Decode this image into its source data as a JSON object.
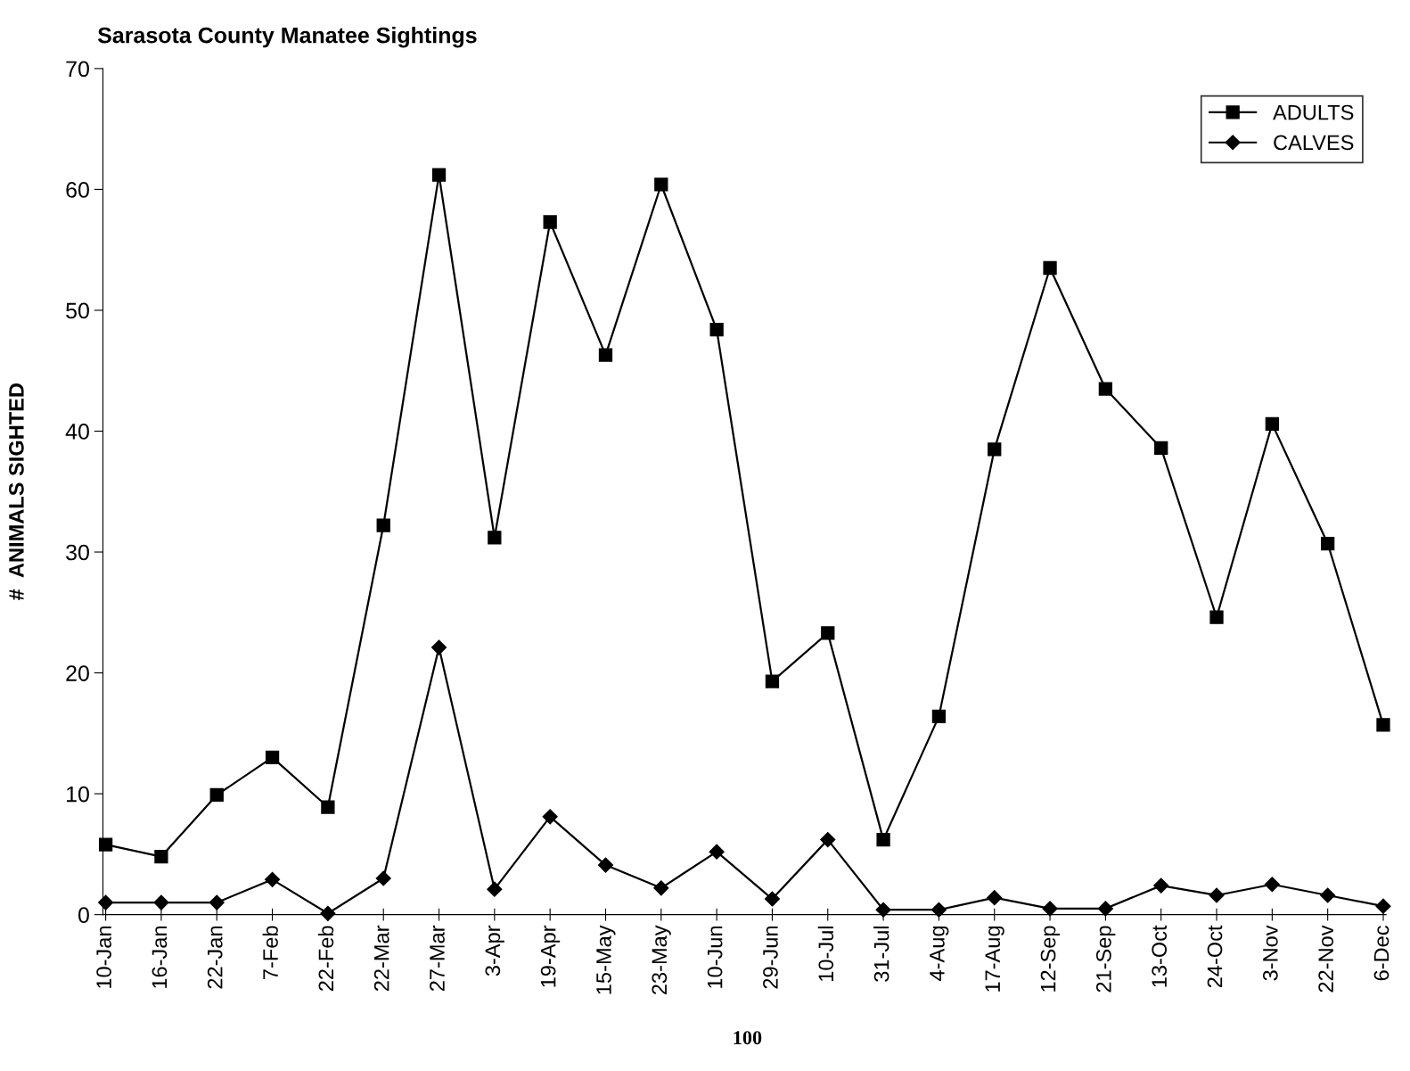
{
  "chart_data": {
    "type": "line",
    "title": "Sarasota County Manatee Sightings",
    "ylabel": "#  ANIMALS SIGHTED",
    "categories": [
      "10-Jan",
      "16-Jan",
      "22-Jan",
      "7-Feb",
      "22-Feb",
      "22-Mar",
      "27-Mar",
      "3-Apr",
      "19-Apr",
      "15-May",
      "23-May",
      "10-Jun",
      "29-Jun",
      "10-Jul",
      "31-Jul",
      "4-Aug",
      "17-Aug",
      "12-Sep",
      "21-Sep",
      "13-Oct",
      "24-Oct",
      "3-Nov",
      "22-Nov",
      "6-Dec"
    ],
    "series": [
      {
        "name": "ADULTS",
        "color": "#000000",
        "marker": "square",
        "values": [
          5.8,
          4.8,
          9.9,
          13.0,
          8.9,
          32.2,
          61.2,
          31.2,
          57.3,
          46.3,
          60.4,
          48.4,
          19.3,
          23.3,
          6.2,
          16.4,
          38.5,
          53.5,
          43.5,
          38.6,
          24.6,
          40.6,
          30.7,
          15.7
        ]
      },
      {
        "name": "CALVES",
        "color": "#000000",
        "marker": "diamond",
        "values": [
          1.0,
          1.0,
          1.0,
          2.9,
          0.1,
          3.0,
          22.1,
          2.1,
          8.1,
          4.1,
          2.2,
          5.2,
          1.3,
          6.2,
          0.4,
          0.4,
          1.4,
          0.5,
          0.5,
          2.4,
          1.6,
          2.5,
          1.6,
          0.7
        ]
      }
    ],
    "ylim": [
      0,
      70
    ],
    "yticks": [
      0,
      10,
      20,
      30,
      40,
      50,
      60,
      70
    ],
    "grid": false,
    "legend": "top right",
    "line_style": "solid",
    "annotations": [
      "100"
    ]
  }
}
